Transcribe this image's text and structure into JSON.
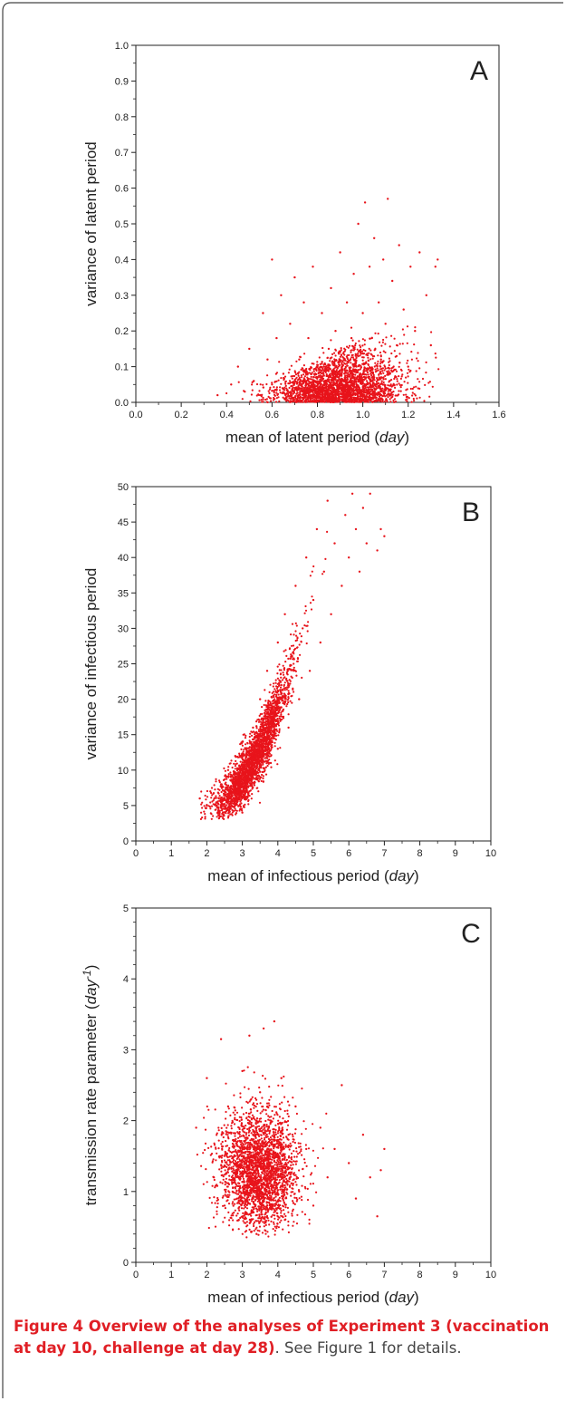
{
  "chart_data": [
    {
      "type": "scatter",
      "panel_label": "A",
      "xlabel": "mean of latent period",
      "xunit": "day",
      "ylabel": "variance of latent period",
      "xlim": [
        0.0,
        1.6
      ],
      "ylim": [
        0.0,
        1.0
      ],
      "xticks": [
        "0.0",
        "0.2",
        "0.4",
        "0.6",
        "0.8",
        "1.0",
        "1.2",
        "1.4",
        "1.6"
      ],
      "yticks": [
        "0.0",
        "0.1",
        "0.2",
        "0.3",
        "0.4",
        "0.5",
        "0.6",
        "0.7",
        "0.8",
        "0.9",
        "1.0"
      ],
      "grid": false,
      "color": "#e8141b",
      "points": [
        [
          0.36,
          0.02
        ],
        [
          0.42,
          0.05
        ],
        [
          0.45,
          0.1
        ],
        [
          0.48,
          0.03
        ],
        [
          0.5,
          0.15
        ],
        [
          0.52,
          0.06
        ],
        [
          0.55,
          0.02
        ],
        [
          0.56,
          0.25
        ],
        [
          0.58,
          0.12
        ],
        [
          0.6,
          0.4
        ],
        [
          0.6,
          0.05
        ],
        [
          0.62,
          0.18
        ],
        [
          0.64,
          0.3
        ],
        [
          0.65,
          0.08
        ],
        [
          0.66,
          0.02
        ],
        [
          0.68,
          0.22
        ],
        [
          0.7,
          0.35
        ],
        [
          0.7,
          0.04
        ],
        [
          0.72,
          0.12
        ],
        [
          0.74,
          0.28
        ],
        [
          0.75,
          0.06
        ],
        [
          0.76,
          0.18
        ],
        [
          0.78,
          0.38
        ],
        [
          0.8,
          0.02
        ],
        [
          0.8,
          0.1
        ],
        [
          0.82,
          0.25
        ],
        [
          0.84,
          0.05
        ],
        [
          0.85,
          0.15
        ],
        [
          0.86,
          0.32
        ],
        [
          0.88,
          0.03
        ],
        [
          0.88,
          0.2
        ],
        [
          0.9,
          0.08
        ],
        [
          0.9,
          0.42
        ],
        [
          0.92,
          0.12
        ],
        [
          0.93,
          0.28
        ],
        [
          0.94,
          0.04
        ],
        [
          0.95,
          0.18
        ],
        [
          0.96,
          0.36
        ],
        [
          0.97,
          0.06
        ],
        [
          0.98,
          0.5
        ],
        [
          0.99,
          0.14
        ],
        [
          1.0,
          0.03
        ],
        [
          1.0,
          0.25
        ],
        [
          1.01,
          0.56
        ],
        [
          1.02,
          0.09
        ],
        [
          1.03,
          0.38
        ],
        [
          1.04,
          0.18
        ],
        [
          1.05,
          0.46
        ],
        [
          1.06,
          0.05
        ],
        [
          1.07,
          0.28
        ],
        [
          1.08,
          0.12
        ],
        [
          1.09,
          0.4
        ],
        [
          1.1,
          0.22
        ],
        [
          1.11,
          0.57
        ],
        [
          1.12,
          0.08
        ],
        [
          1.13,
          0.34
        ],
        [
          1.15,
          0.16
        ],
        [
          1.16,
          0.44
        ],
        [
          1.18,
          0.26
        ],
        [
          1.2,
          0.1
        ],
        [
          1.21,
          0.38
        ],
        [
          1.23,
          0.2
        ],
        [
          1.25,
          0.42
        ],
        [
          1.28,
          0.3
        ],
        [
          1.3,
          0.16
        ],
        [
          1.32,
          0.38
        ],
        [
          1.33,
          0.4
        ]
      ]
    },
    {
      "type": "scatter",
      "panel_label": "B",
      "xlabel": "mean of infectious period",
      "xunit": "day",
      "ylabel": "variance of infectious period",
      "xlim": [
        0,
        10
      ],
      "ylim": [
        0,
        50
      ],
      "xticks": [
        "0",
        "1",
        "2",
        "3",
        "4",
        "5",
        "6",
        "7",
        "8",
        "9",
        "10"
      ],
      "yticks": [
        "0",
        "5",
        "10",
        "15",
        "20",
        "25",
        "30",
        "35",
        "40",
        "45",
        "50"
      ],
      "grid": false,
      "color": "#e8141b",
      "points": [
        [
          1.8,
          6
        ],
        [
          2.0,
          5
        ],
        [
          2.1,
          7
        ],
        [
          2.3,
          4
        ],
        [
          2.4,
          8
        ],
        [
          2.5,
          6
        ],
        [
          2.6,
          10
        ],
        [
          2.7,
          5
        ],
        [
          2.8,
          12
        ],
        [
          2.9,
          8
        ],
        [
          3.0,
          4
        ],
        [
          3.0,
          14
        ],
        [
          3.1,
          10
        ],
        [
          3.2,
          7
        ],
        [
          3.3,
          16
        ],
        [
          3.4,
          12
        ],
        [
          3.5,
          9
        ],
        [
          3.5,
          20
        ],
        [
          3.6,
          14
        ],
        [
          3.7,
          24
        ],
        [
          3.8,
          11
        ],
        [
          3.9,
          18
        ],
        [
          4.0,
          28
        ],
        [
          4.0,
          13
        ],
        [
          4.1,
          22
        ],
        [
          4.2,
          32
        ],
        [
          4.3,
          16
        ],
        [
          4.4,
          26
        ],
        [
          4.5,
          36
        ],
        [
          4.6,
          20
        ],
        [
          4.7,
          30
        ],
        [
          4.8,
          40
        ],
        [
          4.9,
          24
        ],
        [
          5.0,
          34
        ],
        [
          5.1,
          44
        ],
        [
          5.2,
          28
        ],
        [
          5.3,
          38
        ],
        [
          5.4,
          48
        ],
        [
          5.5,
          32
        ],
        [
          5.6,
          42
        ],
        [
          5.8,
          36
        ],
        [
          5.9,
          46
        ],
        [
          6.0,
          40
        ],
        [
          6.1,
          49
        ],
        [
          6.2,
          44
        ],
        [
          6.3,
          38
        ],
        [
          6.4,
          47
        ],
        [
          6.5,
          42
        ],
        [
          6.6,
          49
        ],
        [
          6.8,
          41
        ],
        [
          6.9,
          44
        ],
        [
          7.0,
          43
        ]
      ]
    },
    {
      "type": "scatter",
      "panel_label": "C",
      "xlabel": "mean of infectious period",
      "xunit": "day",
      "ylabel": "transmission rate parameter",
      "yunit": "day-1",
      "xlim": [
        0,
        10
      ],
      "ylim": [
        0,
        5
      ],
      "xticks": [
        "0",
        "1",
        "2",
        "3",
        "4",
        "5",
        "6",
        "7",
        "8",
        "9",
        "10"
      ],
      "yticks": [
        "0",
        "1",
        "2",
        "3",
        "4",
        "5"
      ],
      "grid": false,
      "color": "#e8141b",
      "points": [
        [
          1.7,
          1.9
        ],
        [
          2.0,
          2.6
        ],
        [
          2.2,
          1.2
        ],
        [
          2.4,
          3.15
        ],
        [
          2.5,
          0.8
        ],
        [
          2.6,
          2.2
        ],
        [
          2.8,
          1.5
        ],
        [
          2.9,
          0.6
        ],
        [
          3.0,
          2.7
        ],
        [
          3.1,
          1.0
        ],
        [
          3.2,
          3.2
        ],
        [
          3.3,
          1.8
        ],
        [
          3.4,
          0.4
        ],
        [
          3.5,
          2.4
        ],
        [
          3.6,
          3.3
        ],
        [
          3.7,
          0.8
        ],
        [
          3.8,
          2.0
        ],
        [
          3.9,
          3.4
        ],
        [
          4.0,
          1.2
        ],
        [
          4.1,
          2.6
        ],
        [
          4.2,
          0.6
        ],
        [
          4.3,
          1.8
        ],
        [
          4.5,
          2.2
        ],
        [
          4.6,
          1.0
        ],
        [
          4.8,
          1.6
        ],
        [
          5.0,
          0.8
        ],
        [
          5.2,
          1.9
        ],
        [
          5.4,
          1.2
        ],
        [
          5.6,
          1.6
        ],
        [
          5.8,
          2.5
        ],
        [
          6.0,
          1.4
        ],
        [
          6.2,
          0.9
        ],
        [
          6.4,
          1.8
        ],
        [
          6.6,
          1.2
        ],
        [
          6.8,
          0.65
        ],
        [
          6.9,
          1.3
        ],
        [
          7.0,
          1.6
        ]
      ]
    }
  ],
  "caption": {
    "bold": "Figure 4 Overview of the analyses of Experiment 3 (vaccination at day 10, challenge at day 28)",
    "rest": ". See Figure 1 for details."
  }
}
